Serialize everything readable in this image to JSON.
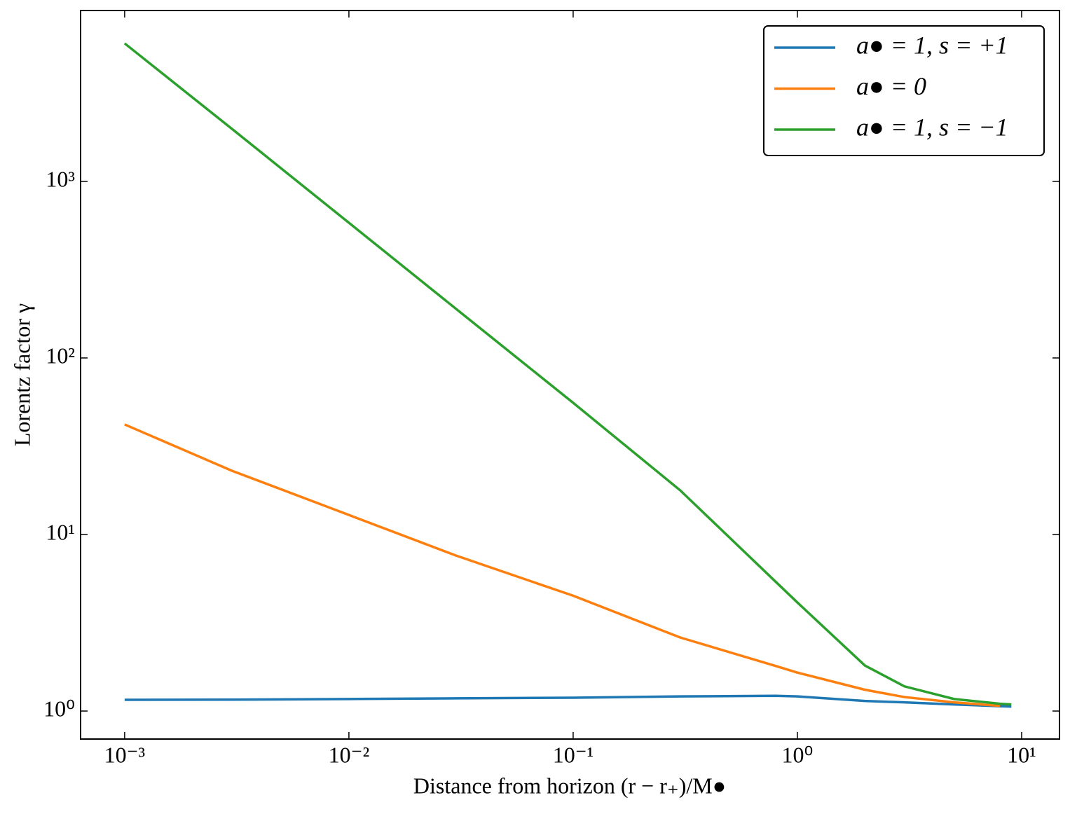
{
  "chart_data": {
    "type": "line",
    "xlabel": "Distance from horizon (r − r₊)/M●",
    "ylabel": "Lorentz factor γ",
    "x": [
      0.001,
      0.003,
      0.01,
      0.03,
      0.1,
      0.3,
      0.8,
      1,
      2,
      3,
      5,
      8,
      9
    ],
    "series": [
      {
        "name": "a● = 1, s = +1",
        "color": "#1f77b4",
        "values": [
          1.158,
          1.16,
          1.17,
          1.18,
          1.19,
          1.21,
          1.22,
          1.21,
          1.14,
          1.12,
          1.09,
          1.065,
          1.06
        ]
      },
      {
        "name": "a● = 0",
        "color": "#ff7f0e",
        "values": [
          42,
          23,
          12.9,
          7.6,
          4.5,
          2.61,
          1.8,
          1.65,
          1.32,
          1.2,
          1.12,
          1.07,
          null
        ]
      },
      {
        "name": "a● = 1, s = −1",
        "color": "#2ca02c",
        "values": [
          6050,
          1990,
          583,
          190,
          55.7,
          17.8,
          5.4,
          4.12,
          1.81,
          1.38,
          1.17,
          1.1,
          1.09
        ]
      }
    ],
    "xscale": "log",
    "yscale": "log",
    "xlim": [
      0.000636,
      14.75
    ],
    "ylim": [
      0.694,
      9290
    ],
    "xticks": [
      {
        "value": 0.001,
        "label": "10⁻³"
      },
      {
        "value": 0.01,
        "label": "10⁻²"
      },
      {
        "value": 0.1,
        "label": "10⁻¹"
      },
      {
        "value": 1,
        "label": "10⁰"
      },
      {
        "value": 10,
        "label": "10¹"
      }
    ],
    "yticks": [
      {
        "value": 1,
        "label": "10⁰"
      },
      {
        "value": 10,
        "label": "10¹"
      },
      {
        "value": 100,
        "label": "10²"
      },
      {
        "value": 1000,
        "label": "10³"
      }
    ],
    "legend": "upper right",
    "grid": false
  }
}
